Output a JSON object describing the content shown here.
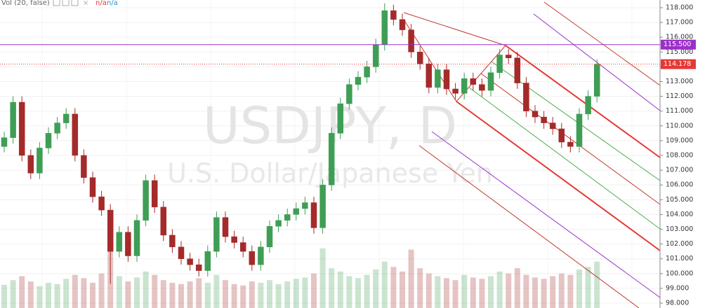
{
  "chart_data": {
    "type": "candlestick",
    "symbol_title": "USDJPY, D",
    "symbol_description": "U.S. Dollar/Japanese Yen",
    "volume_legend": "Vol (20, false)",
    "volume_legend_values": [
      "n/a",
      "n/a"
    ],
    "up_color": "#3f9e55",
    "down_color": "#a52a2a",
    "ylim": [
      97.67,
      118.52
    ],
    "yticks": [
      {
        "value": 98,
        "label": "98.000"
      },
      {
        "value": 99,
        "label": "99.000"
      },
      {
        "value": 100,
        "label": "100.000"
      },
      {
        "value": 101,
        "label": "101.000"
      },
      {
        "value": 102,
        "label": "102.000"
      },
      {
        "value": 103,
        "label": "103.000"
      },
      {
        "value": 104,
        "label": "104.000"
      },
      {
        "value": 105,
        "label": "105.000"
      },
      {
        "value": 106,
        "label": "106.000"
      },
      {
        "value": 107,
        "label": "107.000"
      },
      {
        "value": 108,
        "label": "108.000"
      },
      {
        "value": 109,
        "label": "109.000"
      },
      {
        "value": 110,
        "label": "110.000"
      },
      {
        "value": 111,
        "label": "111.000"
      },
      {
        "value": 112,
        "label": "112.000"
      },
      {
        "value": 113,
        "label": "113.000"
      },
      {
        "value": 114,
        "label": "114.000"
      },
      {
        "value": 115,
        "label": "115.000"
      },
      {
        "value": 116,
        "label": "116.000"
      },
      {
        "value": 117,
        "label": "117.000"
      },
      {
        "value": 118,
        "label": "118.000"
      }
    ],
    "grid": true,
    "horizontal_line": {
      "value": 115.5,
      "label": "115.500",
      "color": "#9b30c9"
    },
    "last_price": {
      "value": 114.178,
      "label": "114.178",
      "color": "#e53935"
    },
    "open": [
      108.6,
      109.2,
      111.6,
      108.0,
      106.8,
      108.5,
      109.5,
      110.2,
      110.8,
      108.0,
      106.5,
      105.2,
      104.3,
      101.5,
      102.8,
      101.2,
      103.6,
      106.3,
      104.5,
      102.6,
      101.8,
      101.0,
      100.6,
      100.2,
      101.5,
      103.8,
      102.5,
      102.1,
      101.5,
      100.6,
      101.8,
      103.2,
      103.6,
      104.0,
      104.4,
      104.8,
      103.1,
      106.0,
      109.5,
      111.5,
      112.8,
      113.3,
      114.0,
      115.5,
      117.8,
      117.2,
      116.5,
      115.0,
      114.2,
      112.6,
      113.8,
      112.5,
      112.2,
      113.2,
      112.8,
      112.4,
      113.6,
      114.8,
      114.6,
      112.9,
      111.0,
      110.6,
      110.2,
      109.8,
      108.9,
      108.6,
      110.8,
      112.0
    ],
    "high": [
      109.6,
      112.0,
      112.0,
      108.4,
      108.9,
      109.9,
      110.6,
      111.2,
      111.2,
      108.4,
      106.9,
      105.6,
      104.7,
      103.2,
      103.2,
      104.0,
      106.7,
      106.7,
      104.9,
      103.0,
      102.2,
      101.4,
      101.0,
      101.9,
      104.2,
      104.2,
      102.9,
      102.5,
      101.9,
      102.2,
      103.6,
      104.0,
      104.4,
      104.8,
      105.2,
      105.2,
      106.4,
      109.9,
      111.9,
      113.2,
      113.7,
      114.4,
      115.9,
      118.3,
      118.2,
      117.6,
      116.9,
      115.4,
      114.6,
      114.2,
      114.2,
      112.9,
      113.6,
      113.6,
      113.2,
      114.0,
      115.2,
      115.2,
      115.0,
      113.3,
      111.4,
      111.0,
      110.6,
      110.2,
      109.3,
      111.2,
      112.4,
      114.5
    ],
    "low": [
      108.2,
      108.8,
      107.6,
      106.4,
      106.4,
      108.1,
      109.1,
      109.8,
      107.6,
      106.1,
      104.8,
      103.9,
      99.3,
      101.1,
      100.8,
      100.8,
      103.2,
      104.1,
      102.2,
      101.4,
      100.6,
      100.2,
      99.8,
      99.8,
      101.1,
      102.1,
      101.7,
      101.1,
      100.2,
      100.2,
      101.4,
      102.8,
      103.2,
      103.6,
      104.0,
      102.7,
      102.7,
      105.6,
      109.1,
      111.1,
      112.4,
      112.9,
      113.6,
      115.1,
      116.8,
      116.1,
      114.6,
      113.8,
      112.2,
      112.2,
      112.1,
      111.8,
      111.8,
      112.4,
      112.0,
      112.0,
      113.2,
      114.2,
      112.5,
      110.6,
      110.2,
      109.8,
      109.4,
      108.5,
      108.2,
      108.2,
      110.4,
      111.6
    ],
    "close": [
      109.2,
      111.6,
      108.0,
      106.8,
      108.5,
      109.5,
      110.2,
      110.8,
      108.0,
      106.5,
      105.2,
      104.3,
      101.5,
      102.8,
      101.2,
      103.6,
      106.3,
      104.5,
      102.6,
      101.8,
      101.0,
      100.6,
      100.2,
      101.5,
      103.8,
      102.5,
      102.1,
      101.5,
      100.6,
      101.8,
      103.2,
      103.6,
      104.0,
      104.4,
      104.8,
      103.1,
      106.0,
      109.5,
      111.5,
      112.8,
      113.3,
      114.0,
      115.5,
      117.8,
      117.2,
      116.5,
      115.0,
      114.2,
      112.6,
      113.8,
      112.5,
      112.2,
      113.2,
      112.8,
      112.4,
      113.6,
      114.8,
      114.6,
      112.9,
      111.0,
      110.6,
      110.2,
      109.8,
      108.9,
      108.6,
      110.8,
      112.0,
      114.178
    ],
    "volume": [
      35,
      42,
      48,
      40,
      33,
      38,
      36,
      44,
      50,
      45,
      38,
      52,
      95,
      48,
      40,
      46,
      55,
      50,
      42,
      38,
      36,
      40,
      45,
      38,
      50,
      42,
      36,
      34,
      40,
      38,
      42,
      36,
      40,
      44,
      46,
      52,
      90,
      60,
      55,
      48,
      45,
      50,
      58,
      70,
      62,
      55,
      88,
      60,
      52,
      48,
      45,
      42,
      50,
      46,
      44,
      48,
      55,
      52,
      60,
      50,
      46,
      44,
      48,
      52,
      50,
      58,
      62,
      70
    ]
  }
}
